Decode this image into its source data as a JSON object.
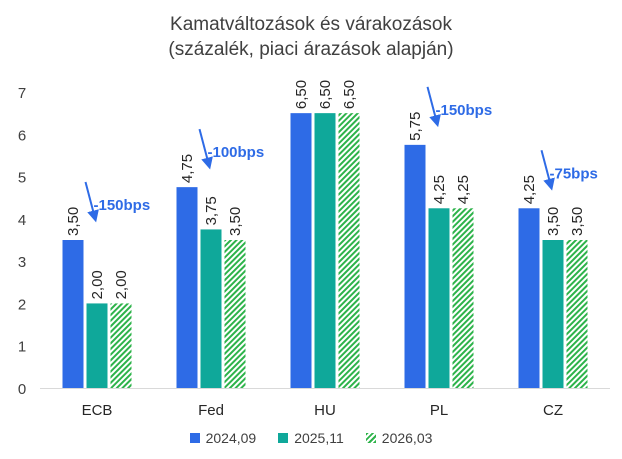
{
  "chart_data": {
    "type": "bar",
    "title": "Kamatváltozások és várakozások",
    "subtitle": "(százalék, piaci árazások alapján)",
    "categories": [
      "ECB",
      "Fed",
      "HU",
      "PL",
      "CZ"
    ],
    "series": [
      {
        "name": "2024,09",
        "values": [
          3.5,
          4.75,
          6.5,
          5.75,
          4.25
        ],
        "labels": [
          "3,50",
          "4,75",
          "6,50",
          "5,75",
          "4,25"
        ],
        "color": "#2E6BE6",
        "pattern": "solid"
      },
      {
        "name": "2025,11",
        "values": [
          2.0,
          3.75,
          6.5,
          4.25,
          3.5
        ],
        "labels": [
          "2,00",
          "3,75",
          "6,50",
          "4,25",
          "3,50"
        ],
        "color": "#0FA89A",
        "pattern": "solid"
      },
      {
        "name": "2026,03",
        "values": [
          2.0,
          3.5,
          6.5,
          4.25,
          3.5
        ],
        "labels": [
          "2,00",
          "3,50",
          "6,50",
          "4,25",
          "3,50"
        ],
        "color": "#2DB34A",
        "pattern": "hatch"
      }
    ],
    "ylim": [
      0,
      7
    ],
    "yticks": [
      0,
      1,
      2,
      3,
      4,
      5,
      6,
      7
    ],
    "grid": false,
    "legend_position": "bottom",
    "annotations": [
      {
        "category": "ECB",
        "text": "-150bps"
      },
      {
        "category": "Fed",
        "text": "-100bps"
      },
      {
        "category": "PL",
        "text": "-150bps"
      },
      {
        "category": "CZ",
        "text": "-75bps"
      }
    ],
    "annotation_color": "#2E6BE6"
  }
}
